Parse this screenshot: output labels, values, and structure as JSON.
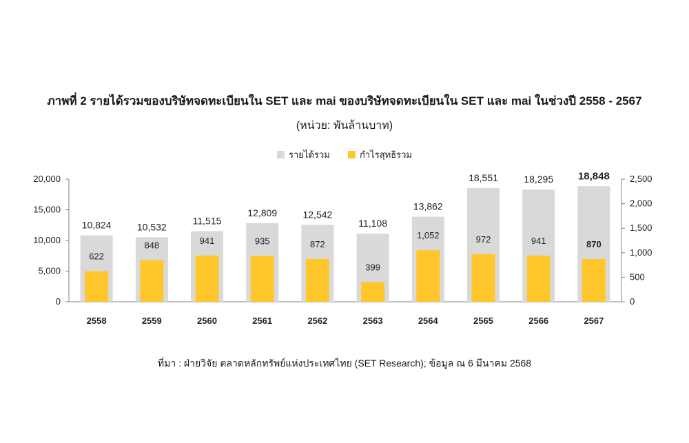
{
  "title": "ภาพที่ 2 รายได้รวมของบริษัทจดทะเบียนใน SET และ mai ของบริษัทจดทะเบียนใน SET และ mai ในช่วงปี 2558 - 2567",
  "unit": "(หน่วย:  พันล้านบาท)",
  "source": "ที่มา : ฝ่ายวิจัย ตลาดหลักทรัพย์แห่งประเทศไทย (SET Research); ข้อมูล ณ 6 มีนาคม 2568",
  "colors": {
    "revenue": "#d9d9d9",
    "profit": "#ffc72c",
    "axis": "#808080",
    "text": "#222222"
  },
  "chart_data": {
    "type": "bar",
    "categories": [
      "2558",
      "2559",
      "2560",
      "2561",
      "2562",
      "2563",
      "2564",
      "2565",
      "2566",
      "2567"
    ],
    "series": [
      {
        "name": "รายได้รวม",
        "axis": "left",
        "values": [
          10824,
          10532,
          11515,
          12809,
          12542,
          11108,
          13862,
          18551,
          18295,
          18848
        ],
        "labels": [
          "10,824",
          "10,532",
          "11,515",
          "12,809",
          "12,542",
          "11,108",
          "13,862",
          "18,551",
          "18,295",
          "18,848"
        ]
      },
      {
        "name": "กำไรสุทธิรวม",
        "axis": "right",
        "values": [
          622,
          848,
          941,
          935,
          872,
          399,
          1052,
          972,
          941,
          870
        ],
        "labels": [
          "622",
          "848",
          "941",
          "935",
          "872",
          "399",
          "1,052",
          "972",
          "941",
          "870"
        ]
      }
    ],
    "left_axis": {
      "ylim": [
        0,
        20000
      ],
      "ticks": [
        "0",
        "5,000",
        "10,000",
        "15,000",
        "20,000"
      ]
    },
    "right_axis": {
      "ylim": [
        0,
        2500
      ],
      "ticks": [
        "0",
        "500",
        "1,000",
        "1,500",
        "2,000",
        "2,500"
      ]
    },
    "legend": "top-center",
    "grid": false,
    "highlight_last": true
  }
}
